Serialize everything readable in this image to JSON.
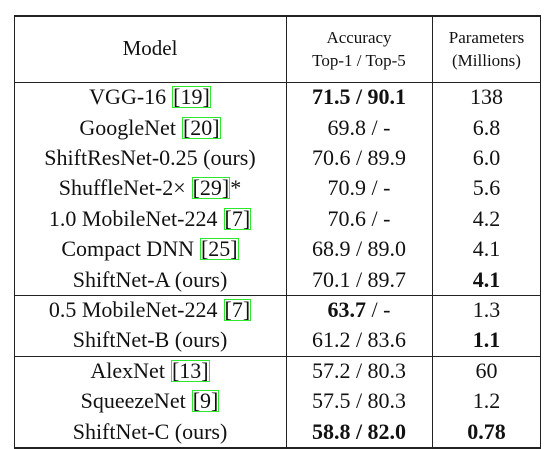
{
  "table": {
    "header": {
      "model": "Model",
      "accuracy": [
        "Accuracy",
        "Top-1 / Top-5"
      ],
      "params": [
        "Parameters",
        "(Millions)"
      ]
    },
    "groups": [
      {
        "rows": [
          {
            "model": {
              "name": "VGG-16",
              "ref": "[19]"
            },
            "accuracy": [
              {
                "text": "71.5 / 90.1",
                "bold": true
              }
            ],
            "params": [
              {
                "text": "138"
              }
            ]
          },
          {
            "model": {
              "name": "GoogleNet",
              "ref": "[20]"
            },
            "accuracy": [
              {
                "text": "69.8 / -"
              }
            ],
            "params": [
              {
                "text": "6.8"
              }
            ]
          },
          {
            "model": {
              "name": "ShiftResNet-0.25 (ours)"
            },
            "accuracy": [
              {
                "text": "70.6 / 89.9"
              }
            ],
            "params": [
              {
                "text": "6.0"
              }
            ]
          },
          {
            "model": {
              "name": "ShuffleNet-2×",
              "ref": "[29]",
              "suffix": "*"
            },
            "accuracy": [
              {
                "text": "70.9 / -"
              }
            ],
            "params": [
              {
                "text": "5.6"
              }
            ]
          },
          {
            "model": {
              "name": "1.0 MobileNet-224",
              "ref": "[7]"
            },
            "accuracy": [
              {
                "text": "70.6 / -"
              }
            ],
            "params": [
              {
                "text": "4.2"
              }
            ]
          },
          {
            "model": {
              "name": "Compact DNN",
              "ref": "[25]"
            },
            "accuracy": [
              {
                "text": "68.9 / 89.0"
              }
            ],
            "params": [
              {
                "text": "4.1"
              }
            ]
          },
          {
            "model": {
              "name": "ShiftNet-A (ours)"
            },
            "accuracy": [
              {
                "text": "70.1 / 89.7"
              }
            ],
            "params": [
              {
                "text": "4.1",
                "bold": true
              }
            ]
          }
        ]
      },
      {
        "rows": [
          {
            "model": {
              "name": "0.5 MobileNet-224",
              "ref": "[7]"
            },
            "accuracy": [
              {
                "text": "63.7",
                "bold": true
              },
              {
                "text": " / -"
              }
            ],
            "params": [
              {
                "text": "1.3"
              }
            ]
          },
          {
            "model": {
              "name": "ShiftNet-B (ours)"
            },
            "accuracy": [
              {
                "text": "61.2 / 83.6"
              }
            ],
            "params": [
              {
                "text": "1.1",
                "bold": true
              }
            ]
          }
        ]
      },
      {
        "rows": [
          {
            "model": {
              "name": "AlexNet",
              "ref": "[13]"
            },
            "accuracy": [
              {
                "text": "57.2 / 80.3"
              }
            ],
            "params": [
              {
                "text": "60"
              }
            ]
          },
          {
            "model": {
              "name": "SqueezeNet",
              "ref": "[9]"
            },
            "accuracy": [
              {
                "text": "57.5 / 80.3"
              }
            ],
            "params": [
              {
                "text": "1.2"
              }
            ]
          },
          {
            "model": {
              "name": "ShiftNet-C (ours)"
            },
            "accuracy": [
              {
                "text": "58.8 / 82.0",
                "bold": true
              }
            ],
            "params": [
              {
                "text": "0.78",
                "bold": true
              }
            ]
          }
        ]
      }
    ]
  }
}
